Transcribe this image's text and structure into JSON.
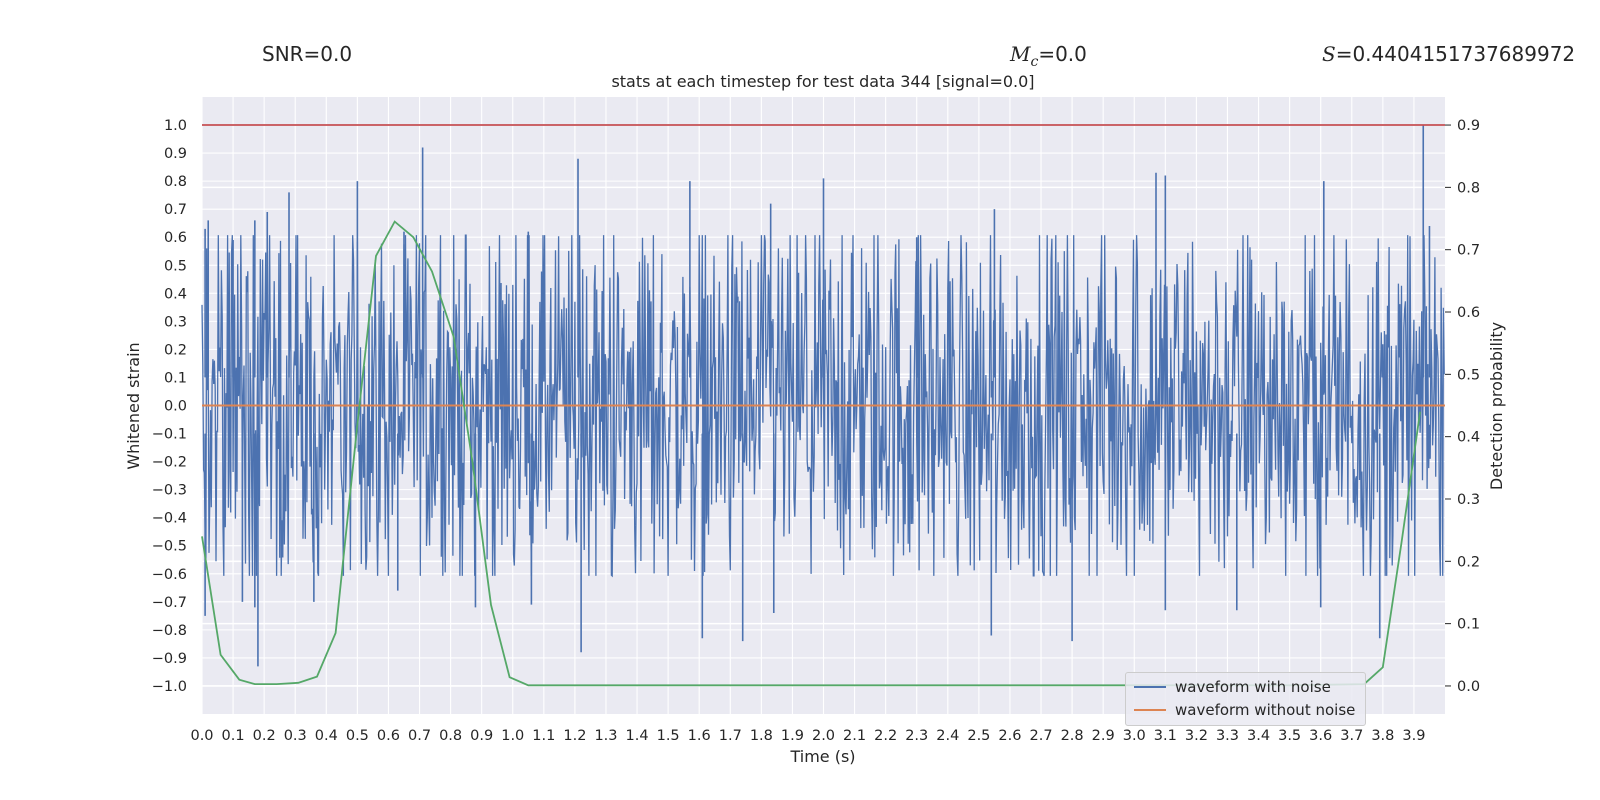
{
  "header": {
    "snr_text": "SNR=0.0",
    "mc_symbol": "M",
    "mc_sub": "c",
    "mc_value": "=0.0",
    "s_symbol": "S",
    "s_value": "=0.4404151737689972"
  },
  "chart_data": {
    "type": "line",
    "title": "stats at each timestep for test data 344 [signal=0.0]",
    "xlabel": "Time (s)",
    "ylabel": "Whitened strain",
    "y2label": "Detection probability",
    "xlim": [
      0.0,
      4.0
    ],
    "ylim": [
      -1.1,
      1.1
    ],
    "y2lim": [
      -0.045,
      0.945
    ],
    "xticks": [
      "0.0",
      "0.1",
      "0.2",
      "0.3",
      "0.4",
      "0.5",
      "0.6",
      "0.7",
      "0.8",
      "0.9",
      "1.0",
      "1.1",
      "1.2",
      "1.3",
      "1.4",
      "1.5",
      "1.6",
      "1.7",
      "1.8",
      "1.9",
      "2.0",
      "2.1",
      "2.2",
      "2.3",
      "2.4",
      "2.5",
      "2.6",
      "2.7",
      "2.8",
      "2.9",
      "3.0",
      "3.1",
      "3.2",
      "3.3",
      "3.4",
      "3.5",
      "3.6",
      "3.7",
      "3.8",
      "3.9"
    ],
    "yticks": [
      "1.0",
      "0.9",
      "0.8",
      "0.7",
      "0.6",
      "0.5",
      "0.4",
      "0.3",
      "0.2",
      "0.1",
      "0.0",
      "−0.1",
      "−0.2",
      "−0.3",
      "−0.4",
      "−0.5",
      "−0.6",
      "−0.7",
      "−0.8",
      "−0.9",
      "−1.0"
    ],
    "y2ticks": [
      "0.9",
      "0.8",
      "0.7",
      "0.6",
      "0.5",
      "0.4",
      "0.3",
      "0.2",
      "0.1",
      "0.0"
    ],
    "grid": true,
    "legend_position": "lower-right",
    "background": "#eaeaf2",
    "series": [
      {
        "name": "waveform with noise",
        "color": "#4c72b0",
        "axis": "left",
        "noise_band": [
          -0.45,
          0.45
        ],
        "peaks": [
          {
            "x": 0.01,
            "y": 0.63
          },
          {
            "x": 0.02,
            "y": 0.66
          },
          {
            "x": 0.1,
            "y": 0.59
          },
          {
            "x": 0.17,
            "y": 0.66
          },
          {
            "x": 0.21,
            "y": 0.69
          },
          {
            "x": 0.28,
            "y": 0.76
          },
          {
            "x": 0.5,
            "y": 0.8
          },
          {
            "x": 0.71,
            "y": 0.92
          },
          {
            "x": 0.65,
            "y": 0.62
          },
          {
            "x": 1.05,
            "y": 0.62
          },
          {
            "x": 1.21,
            "y": 0.88
          },
          {
            "x": 1.57,
            "y": 0.8
          },
          {
            "x": 1.83,
            "y": 0.72
          },
          {
            "x": 2.0,
            "y": 0.81
          },
          {
            "x": 2.3,
            "y": 0.6
          },
          {
            "x": 2.55,
            "y": 0.7
          },
          {
            "x": 3.07,
            "y": 0.83
          },
          {
            "x": 3.1,
            "y": 0.82
          },
          {
            "x": 3.61,
            "y": 0.8
          },
          {
            "x": 3.93,
            "y": 1.0
          },
          {
            "x": 3.95,
            "y": 0.64
          }
        ],
        "troughs": [
          {
            "x": 0.01,
            "y": -0.75
          },
          {
            "x": 0.13,
            "y": -0.7
          },
          {
            "x": 0.17,
            "y": -0.72
          },
          {
            "x": 0.18,
            "y": -0.93
          },
          {
            "x": 0.36,
            "y": -0.7
          },
          {
            "x": 0.63,
            "y": -0.66
          },
          {
            "x": 0.88,
            "y": -0.72
          },
          {
            "x": 1.06,
            "y": -0.71
          },
          {
            "x": 1.22,
            "y": -0.88
          },
          {
            "x": 1.61,
            "y": -0.83
          },
          {
            "x": 1.74,
            "y": -0.84
          },
          {
            "x": 1.84,
            "y": -0.74
          },
          {
            "x": 2.54,
            "y": -0.82
          },
          {
            "x": 2.8,
            "y": -0.84
          },
          {
            "x": 3.1,
            "y": -0.73
          },
          {
            "x": 3.33,
            "y": -0.73
          },
          {
            "x": 3.6,
            "y": -0.72
          },
          {
            "x": 3.79,
            "y": -0.83
          }
        ]
      },
      {
        "name": "waveform without noise",
        "color": "#dd8452",
        "axis": "left",
        "x": [
          0.0,
          4.0
        ],
        "y": [
          0.0,
          0.0
        ]
      },
      {
        "name": "",
        "color": "#55a868",
        "axis": "right",
        "x": [
          0.0,
          0.06,
          0.12,
          0.17,
          0.24,
          0.31,
          0.37,
          0.43,
          0.5,
          0.56,
          0.62,
          0.68,
          0.74,
          0.81,
          0.87,
          0.93,
          0.99,
          1.05,
          1.5,
          2.0,
          2.5,
          3.0,
          3.5,
          3.74,
          3.8,
          3.86,
          3.92
        ],
        "y": [
          0.24,
          0.05,
          0.01,
          0.003,
          0.003,
          0.005,
          0.015,
          0.085,
          0.42,
          0.69,
          0.745,
          0.72,
          0.665,
          0.56,
          0.36,
          0.13,
          0.014,
          0.001,
          0.001,
          0.001,
          0.001,
          0.001,
          0.001,
          0.003,
          0.03,
          0.23,
          0.44
        ]
      },
      {
        "name": "",
        "color": "#c44e52",
        "axis": "left",
        "x": [
          0.0,
          4.0
        ],
        "y": [
          1.0,
          1.0
        ]
      }
    ]
  }
}
